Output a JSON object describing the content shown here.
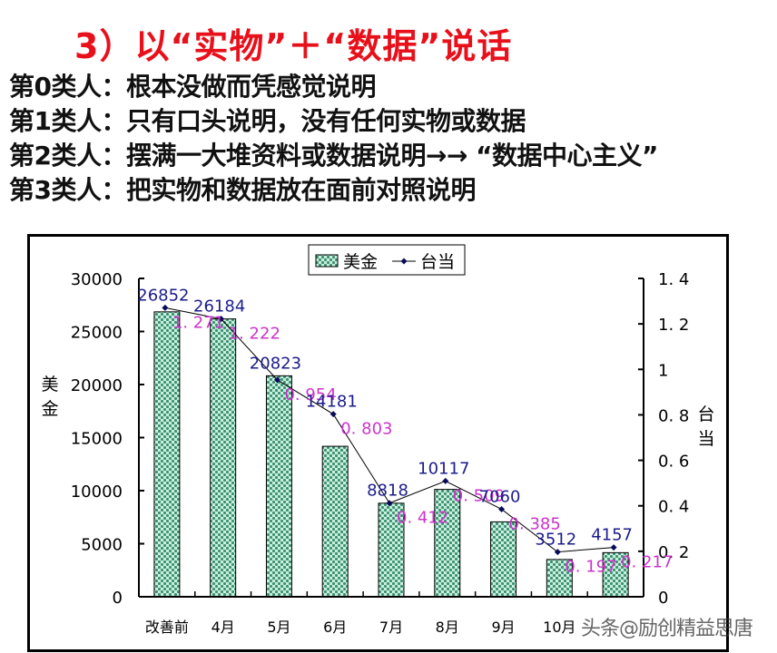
{
  "slide": {
    "title": "3）以“实物”＋“数据”说话",
    "lines": [
      "第0类人：根本没做而凭感觉说明",
      "第1类人：只有口头说明，没有任何实物或数据",
      "第2类人：摆满一大堆资料或数据说明→→ “数据中心主义”",
      "第3类人：把实物和数据放在面前对照说明"
    ],
    "watermark": "头条@励创精益思唐"
  },
  "colors": {
    "title": "#e8101a",
    "bar_dark": "#3f8f6f",
    "bar_light": "#c9f2e2",
    "line": "#000000",
    "marker": "#0a0a5a",
    "usd_label": "#1c1c8c",
    "ratio_label": "#cc33cc"
  },
  "chart_data": {
    "type": "bar+line",
    "title": "",
    "categories": [
      "改善前",
      "4月",
      "5月",
      "6月",
      "7月",
      "8月",
      "9月",
      "10月",
      ""
    ],
    "series": [
      {
        "name": "美金",
        "type": "bar",
        "axis": "left",
        "values": [
          26852,
          26184,
          20823,
          14181,
          8818,
          10117,
          7060,
          3512,
          4157
        ]
      },
      {
        "name": "台当",
        "type": "line",
        "axis": "right",
        "values": [
          1.271,
          1.222,
          0.954,
          0.803,
          0.412,
          0.509,
          0.385,
          0.197,
          0.217
        ]
      }
    ],
    "ylabel": "美金",
    "y2label": "台当",
    "ylim": [
      0,
      30000
    ],
    "y2lim": [
      0,
      1.4
    ],
    "yticks": [
      "30000",
      "25000",
      "20000",
      "15000",
      "10000",
      "5000",
      "0"
    ],
    "y2ticks": [
      "1.4",
      "1.2",
      "1",
      "0.8",
      "0.6",
      "0.4",
      "0.2",
      "0"
    ],
    "legend": {
      "position": "top",
      "entries": [
        "美金",
        "台当"
      ]
    },
    "grid": false
  }
}
